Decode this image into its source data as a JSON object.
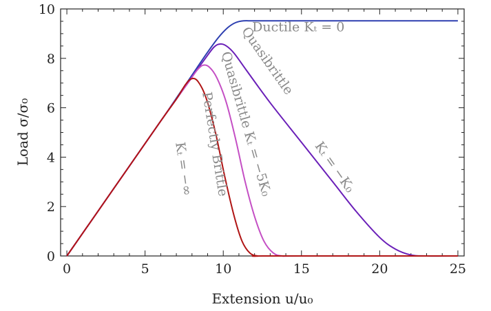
{
  "chart_data": {
    "type": "line",
    "xlabel": "Extension u/u₀",
    "ylabel": "Load σ/σ₀",
    "xlim": [
      -0.4,
      25.4
    ],
    "ylim": [
      0,
      10
    ],
    "xticks": [
      0,
      5,
      10,
      15,
      20,
      25
    ],
    "yticks": [
      0,
      2,
      4,
      6,
      8,
      10
    ],
    "xtick_labels": [
      "0",
      "5",
      "10",
      "15",
      "20",
      "25"
    ],
    "ytick_labels": [
      "0",
      "2",
      "4",
      "6",
      "8",
      "10"
    ],
    "grid": false,
    "series": [
      {
        "color": "#2d3fb0",
        "x": [
          0,
          2,
          4,
          6,
          6.8,
          7.5,
          8.3,
          9.0,
          9.7,
          10.3,
          10.8,
          11.3,
          12,
          15,
          20,
          25
        ],
        "y": [
          0,
          1.82,
          3.64,
          5.46,
          6.2,
          6.85,
          7.6,
          8.25,
          8.85,
          9.25,
          9.45,
          9.52,
          9.52,
          9.52,
          9.52,
          9.52
        ]
      },
      {
        "color": "#6a1fb8",
        "x": [
          0,
          2,
          4,
          6,
          7,
          8,
          8.8,
          9.4,
          9.8,
          10.2,
          10.7,
          11.5,
          13,
          15,
          17,
          18.5,
          20,
          21,
          22,
          23,
          25
        ],
        "y": [
          0,
          1.82,
          3.64,
          5.46,
          6.35,
          7.25,
          7.95,
          8.45,
          8.58,
          8.5,
          8.2,
          7.5,
          6.2,
          4.6,
          3.0,
          1.8,
          0.75,
          0.28,
          0.04,
          0,
          0
        ]
      },
      {
        "color": "#c44fc4",
        "x": [
          0,
          2,
          4,
          6,
          7,
          7.8,
          8.3,
          8.7,
          9.1,
          9.6,
          10.2,
          10.8,
          11.4,
          12,
          12.6,
          13.2,
          13.8,
          15,
          25
        ],
        "y": [
          0,
          1.82,
          3.64,
          5.46,
          6.35,
          7.05,
          7.5,
          7.72,
          7.65,
          7.2,
          6.2,
          4.7,
          3.0,
          1.6,
          0.6,
          0.12,
          0,
          0,
          0
        ]
      },
      {
        "color": "#b01515",
        "x": [
          0,
          2,
          4,
          6,
          7,
          7.6,
          8.0,
          8.4,
          8.9,
          9.5,
          10.1,
          10.7,
          11.2,
          11.7,
          12.2,
          13,
          25
        ],
        "y": [
          0,
          1.82,
          3.64,
          5.46,
          6.35,
          6.95,
          7.18,
          7.05,
          6.4,
          5.0,
          3.2,
          1.6,
          0.6,
          0.12,
          0,
          0,
          0
        ]
      }
    ],
    "annotations": [
      {
        "id": "ductile",
        "text": "Ductile  Kₜ = 0",
        "x": 14.8,
        "y": 9.1,
        "angle": 0
      },
      {
        "id": "quasi-k0-name",
        "text": "Quasibrittle",
        "x": 12.6,
        "y": 7.8,
        "angle": 55
      },
      {
        "id": "quasi-k0-eq",
        "text": "Kₜ = −K₀",
        "x": 16.9,
        "y": 3.5,
        "angle": 55
      },
      {
        "id": "quasi-5k0",
        "text": "Quasibrittle  Kₜ = −5K₀",
        "x": 11.2,
        "y": 5.3,
        "angle": 74
      },
      {
        "id": "brittle-name",
        "text": "Perfectly Brittle",
        "x": 9.2,
        "y": 4.5,
        "angle": 81
      },
      {
        "id": "brittle-eq",
        "text": "Kₜ = −∞",
        "x": 7.2,
        "y": 3.5,
        "angle": 82
      }
    ]
  }
}
